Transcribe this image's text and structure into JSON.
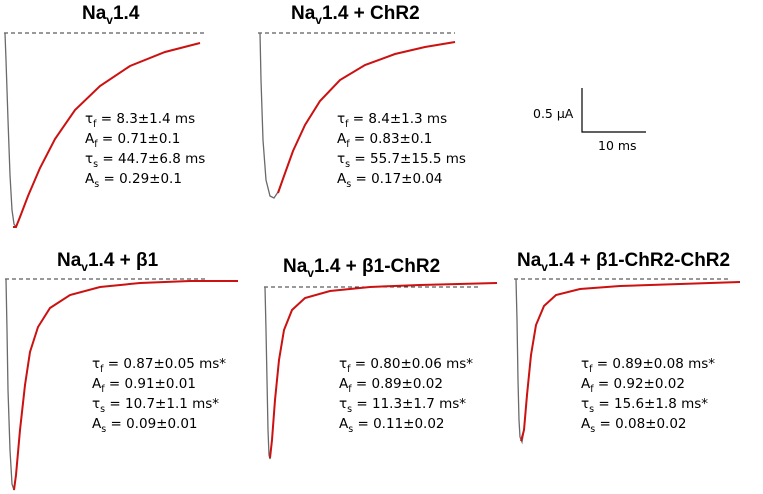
{
  "panels": [
    {
      "title": {
        "main": "Na",
        "sub": "v",
        "rest": "1.4"
      },
      "params": [
        {
          "sym": "τ",
          "sub": "f",
          "val": " = 8.3±1.4 ms"
        },
        {
          "sym": "A",
          "sub": "f",
          "val": " = 0.71±0.1"
        },
        {
          "sym": "τ",
          "sub": "s",
          "val": " = 44.7±6.8 ms"
        },
        {
          "sym": "A",
          "sub": "s",
          "val": " = 0.29±0.1"
        }
      ]
    },
    {
      "title": {
        "main": "Na",
        "sub": "v",
        "rest": "1.4 + ChR2"
      },
      "params": [
        {
          "sym": "τ",
          "sub": "f",
          "val": " = 8.4±1.3 ms"
        },
        {
          "sym": "A",
          "sub": "f",
          "val": " = 0.83±0.1"
        },
        {
          "sym": "τ",
          "sub": "s",
          "val": " = 55.7±15.5 ms"
        },
        {
          "sym": "A",
          "sub": "s",
          "val": " = 0.17±0.04"
        }
      ]
    },
    {
      "title": {
        "main": "Na",
        "sub": "v",
        "rest": "1.4 + β1"
      },
      "params": [
        {
          "sym": "τ",
          "sub": "f",
          "val": " = 0.87±0.05 ms*"
        },
        {
          "sym": "A",
          "sub": "f",
          "val": " = 0.91±0.01"
        },
        {
          "sym": "τ",
          "sub": "s",
          "val": " = 10.7±1.1 ms*"
        },
        {
          "sym": "A",
          "sub": "s",
          "val": " = 0.09±0.01"
        }
      ]
    },
    {
      "title": {
        "main": "Na",
        "sub": "v",
        "rest": "1.4 + β1-ChR2"
      },
      "params": [
        {
          "sym": "τ",
          "sub": "f",
          "val": " = 0.80±0.06 ms*"
        },
        {
          "sym": "A",
          "sub": "f",
          "val": " = 0.89±0.02"
        },
        {
          "sym": "τ",
          "sub": "s",
          "val": " = 11.3±1.7 ms*"
        },
        {
          "sym": "A",
          "sub": "s",
          "val": " = 0.11±0.02"
        }
      ]
    },
    {
      "title": {
        "main": "Na",
        "sub": "v",
        "rest": "1.4 + β1-ChR2-ChR2"
      },
      "params": [
        {
          "sym": "τ",
          "sub": "f",
          "val": " = 0.89±0.08 ms*"
        },
        {
          "sym": "A",
          "sub": "f",
          "val": " = 0.92±0.02"
        },
        {
          "sym": "τ",
          "sub": "s",
          "val": " = 15.6±1.8 ms*"
        },
        {
          "sym": "A",
          "sub": "s",
          "val": " = 0.08±0.02"
        }
      ]
    }
  ],
  "scale_bar": {
    "current_label": "0.5 μA",
    "time_label": "10 ms"
  },
  "colors": {
    "raw_trace": "#6a6a6a",
    "fit_trace": "#cc1111",
    "baseline": "#333333"
  }
}
